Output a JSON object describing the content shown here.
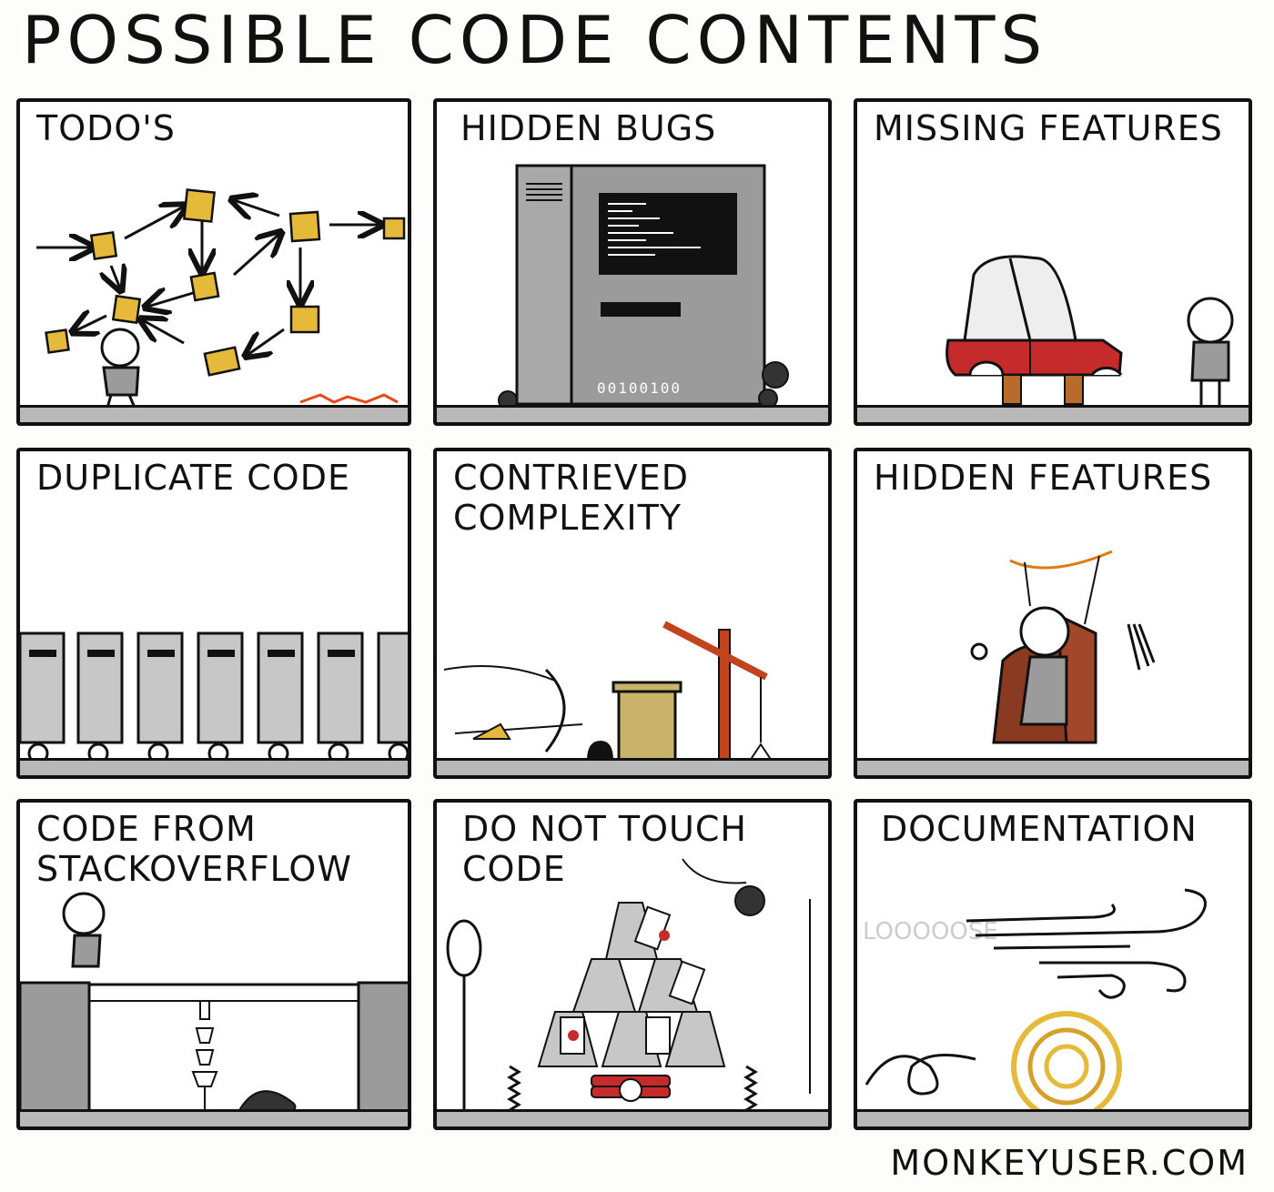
{
  "title": "POSSIBLE CODE CONTENTS",
  "panels": [
    {
      "label": "TODO'S"
    },
    {
      "label": "HIDDEN BUGS",
      "binary": "00100100"
    },
    {
      "label": "MISSING FEATURES"
    },
    {
      "label": "DUPLICATE CODE"
    },
    {
      "label": "CONTRIEVED\nCOMPLEXITY"
    },
    {
      "label": "HIDDEN FEATURES"
    },
    {
      "label": "CODE FROM\nSTACKOVERFLOW"
    },
    {
      "label": "DO NOT TOUCH CODE"
    },
    {
      "label": "DOCUMENTATION",
      "sound": "LOOOOOSE"
    }
  ],
  "footer": "MONKEYUSER.COM",
  "colors": {
    "sticky_note": "#e5b93a",
    "server_grey": "#9b9b9b",
    "car_red": "#c62b2b",
    "ground": "#b8b8b8",
    "chair_brown": "#8b3a22",
    "bin_tan": "#c9b26a"
  }
}
